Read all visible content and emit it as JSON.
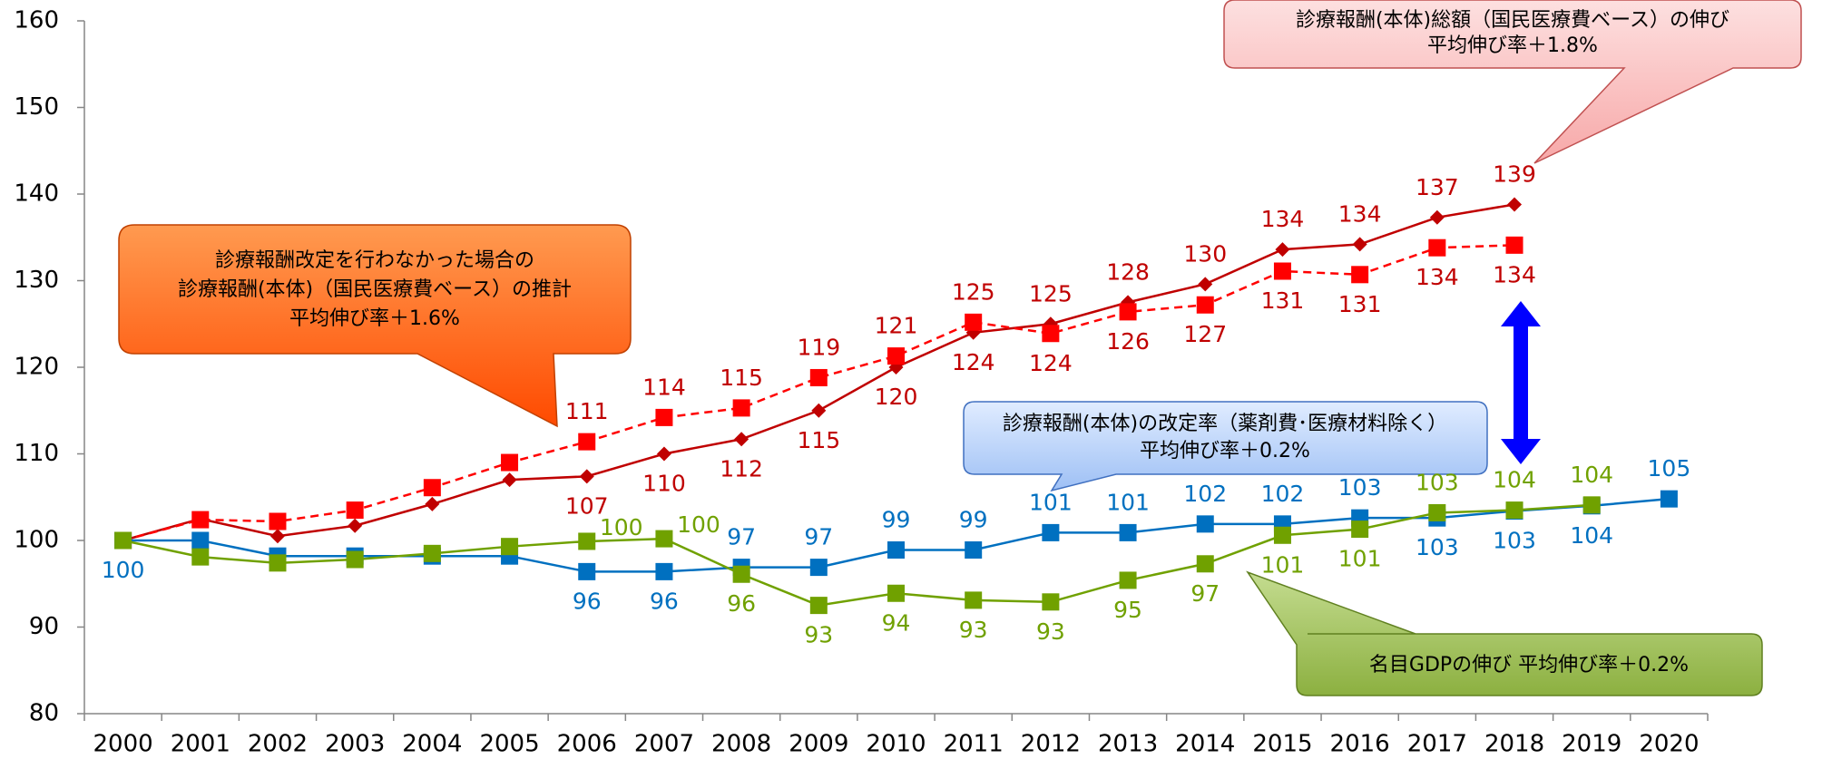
{
  "chart_data": {
    "type": "line",
    "categories": [
      "2000",
      "2001",
      "2002",
      "2003",
      "2004",
      "2005",
      "2006",
      "2007",
      "2008",
      "2009",
      "2010",
      "2011",
      "2012",
      "2013",
      "2014",
      "2015",
      "2016",
      "2017",
      "2018",
      "2019",
      "2020"
    ],
    "ylim": [
      80,
      160
    ],
    "yticks": [
      80,
      90,
      100,
      110,
      120,
      130,
      140,
      150,
      160
    ],
    "series": [
      {
        "color": "#c00000",
        "marker": "diamond",
        "dashed": false,
        "values": [
          100,
          102.5,
          100.5,
          101.7,
          104.2,
          107,
          107.4,
          110,
          111.7,
          115,
          120,
          124,
          125,
          127.5,
          129.6,
          133.6,
          134.2,
          137.3,
          138.8,
          null,
          null
        ],
        "value_labels": [
          null,
          null,
          null,
          null,
          null,
          null,
          "107",
          "110",
          "112",
          "115",
          "120",
          "124",
          "125",
          "128",
          "130",
          "134",
          "134",
          "137",
          "139",
          null,
          null
        ]
      },
      {
        "color": "#ff0000",
        "marker": "square",
        "dashed": true,
        "values": [
          100,
          102.4,
          102.2,
          103.5,
          106.1,
          109,
          111.4,
          114.2,
          115.3,
          118.8,
          121.3,
          125.2,
          123.9,
          126.4,
          127.2,
          131.1,
          130.7,
          133.8,
          134.1,
          null,
          null
        ],
        "value_labels": [
          null,
          null,
          null,
          null,
          null,
          null,
          "111",
          "114",
          "115",
          "119",
          "121",
          "125",
          "124",
          "126",
          "127",
          "131",
          "131",
          "134",
          "134",
          null,
          null
        ]
      },
      {
        "color": "#0070c0",
        "marker": "square",
        "dashed": false,
        "values": [
          100,
          100,
          98.2,
          98.2,
          98.2,
          98.2,
          96.4,
          96.4,
          96.9,
          96.9,
          98.9,
          98.9,
          100.9,
          100.9,
          101.9,
          101.9,
          102.6,
          102.6,
          103.4,
          104,
          104.8
        ],
        "value_labels": [
          "100",
          null,
          null,
          null,
          null,
          null,
          "96",
          "96",
          "97",
          "97",
          "99",
          "99",
          "101",
          "101",
          "102",
          "102",
          "103",
          "103",
          "103",
          "104",
          "105"
        ]
      },
      {
        "color": "#70a100",
        "marker": "square",
        "dashed": false,
        "values": [
          100,
          98.1,
          97.4,
          97.8,
          98.5,
          99.3,
          99.9,
          100.2,
          96.1,
          92.5,
          93.9,
          93.1,
          92.9,
          95.4,
          97.3,
          100.6,
          101.3,
          103.2,
          103.5,
          104.1,
          null
        ],
        "value_labels": [
          null,
          null,
          null,
          null,
          null,
          null,
          "100",
          "100",
          "96",
          "93",
          "94",
          "93",
          "93",
          "95",
          "97",
          "101",
          "101",
          "103",
          "104",
          "104",
          null
        ]
      }
    ],
    "annotations": [
      {
        "lines": [
          "診療報酬(本体)総額（国民医療費ベース）の伸び",
          "平均伸び率＋1.8%"
        ]
      },
      {
        "lines": [
          "診療報酬改定を行わなかった場合の",
          "診療報酬(本体)（国民医療費ベース）の推計",
          "平均伸び率＋1.6%"
        ]
      },
      {
        "lines": [
          "診療報酬(本体)の改定率（薬剤費･医療材料除く）",
          "平均伸び率＋0.2%"
        ]
      },
      {
        "lines": [
          "名目GDPの伸び  平均伸び率＋0.2%"
        ]
      }
    ]
  }
}
